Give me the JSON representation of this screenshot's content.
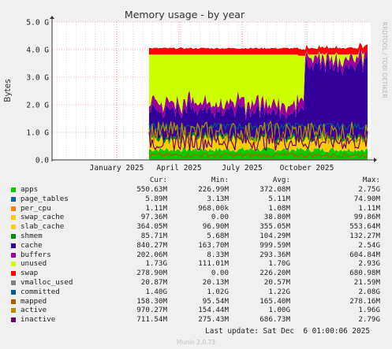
{
  "chart_data": {
    "type": "area",
    "title": "Memory usage - by year",
    "ylabel": "Bytes",
    "side_label": "RRDTOOL / TOBI OETIKER",
    "y_ticks": [
      "0.0",
      "1.0 G",
      "2.0 G",
      "3.0 G",
      "4.0 G",
      "5.0 G"
    ],
    "x_ticks": [
      "January 2025",
      "April 2025",
      "July 2025",
      "October 2025"
    ],
    "ylim": [
      0,
      5
    ],
    "y_unit": "G",
    "grid": true,
    "stacked_from": "April 2025",
    "legend_headers": {
      "cur": "Cur:",
      "min": "Min:",
      "avg": "Avg:",
      "max": "Max:"
    },
    "series": [
      {
        "name": "apps",
        "color": "#00cc00",
        "cur": "550.63M",
        "min": "226.99M",
        "avg": "372.08M",
        "max": "2.75G",
        "approx_level_g": 0.37
      },
      {
        "name": "page_tables",
        "color": "#0066b3",
        "cur": "5.89M",
        "min": "3.13M",
        "avg": "5.11M",
        "max": "74.90M",
        "approx_level_g": 0.005
      },
      {
        "name": "per_cpu",
        "color": "#ff8000",
        "cur": "1.11M",
        "min": "968.00k",
        "avg": "1.08M",
        "max": "1.11M",
        "approx_level_g": 0.001
      },
      {
        "name": "swap_cache",
        "color": "#ffcc00",
        "cur": "97.36M",
        "min": "0.00",
        "avg": "38.80M",
        "max": "99.86M",
        "approx_level_g": 0.04
      },
      {
        "name": "slab_cache",
        "color": "#ffcc00",
        "cur": "364.05M",
        "min": "96.90M",
        "avg": "355.05M",
        "max": "553.64M",
        "approx_level_g": 0.36
      },
      {
        "name": "shmem",
        "color": "#008f00",
        "cur": "85.71M",
        "min": "5.68M",
        "avg": "104.29M",
        "max": "132.27M",
        "approx_level_g": 0.1
      },
      {
        "name": "cache",
        "color": "#330099",
        "cur": "840.27M",
        "min": "163.70M",
        "avg": "999.59M",
        "max": "2.54G",
        "approx_level_g": 1.0
      },
      {
        "name": "buffers",
        "color": "#990099",
        "cur": "202.06M",
        "min": "8.33M",
        "avg": "293.36M",
        "max": "604.84M",
        "approx_level_g": 0.29
      },
      {
        "name": "unused",
        "color": "#ccff00",
        "cur": "1.73G",
        "min": "111.01M",
        "avg": "1.70G",
        "max": "2.93G",
        "approx_level_g": 1.7
      },
      {
        "name": "swap",
        "color": "#ff0000",
        "cur": "278.90M",
        "min": "0.00",
        "avg": "226.20M",
        "max": "680.98M",
        "approx_level_g": 0.23
      },
      {
        "name": "vmalloc_used",
        "color": "#808080",
        "cur": "20.87M",
        "min": "20.13M",
        "avg": "20.57M",
        "max": "21.59M"
      },
      {
        "name": "committed",
        "color": "#005a8c",
        "cur": "1.40G",
        "min": "1.02G",
        "avg": "1.22G",
        "max": "2.08G"
      },
      {
        "name": "mapped",
        "color": "#b35a00",
        "cur": "158.30M",
        "min": "95.54M",
        "avg": "165.40M",
        "max": "278.16M"
      },
      {
        "name": "active",
        "color": "#b38f00",
        "cur": "970.27M",
        "min": "154.44M",
        "avg": "1.00G",
        "max": "1.96G"
      },
      {
        "name": "inactive",
        "color": "#6b006b",
        "cur": "711.54M",
        "min": "275.43M",
        "avg": "686.73M",
        "max": "2.79G"
      }
    ]
  },
  "footer": {
    "last_update": "Last update: Sat Dec  6 01:00:06 2025",
    "munin_version": "Munin 2.0.73"
  }
}
